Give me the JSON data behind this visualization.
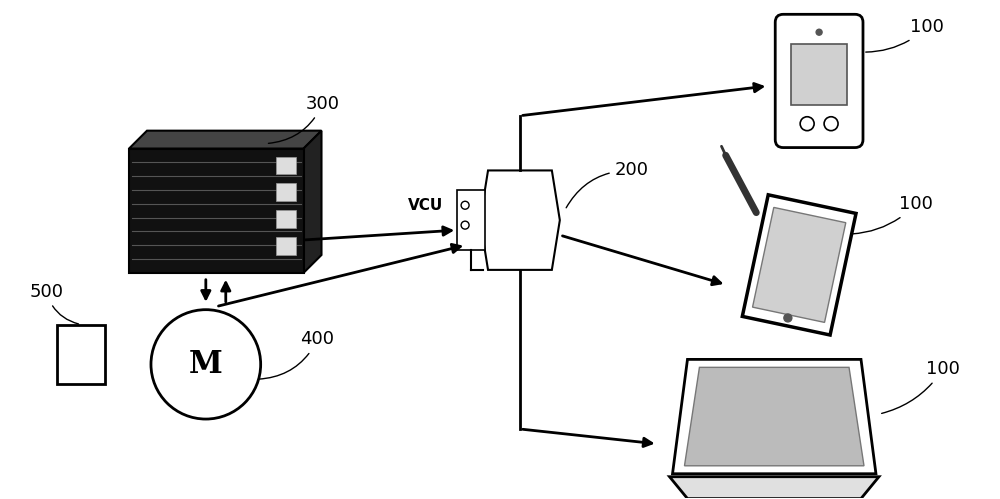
{
  "bg_color": "#ffffff",
  "label_300": "300",
  "label_200": "200",
  "label_400": "400",
  "label_500": "500",
  "label_100_top": "100",
  "label_100_mid": "100",
  "label_100_bot": "100",
  "label_vcu": "VCU",
  "label_M": "M",
  "figsize": [
    10.0,
    4.99
  ],
  "dpi": 100,
  "black": "#000000",
  "gray_screen": "#d0d0d0",
  "gray_base": "#e0e0e0",
  "server_fill": "#111111",
  "server_line": "#666666"
}
